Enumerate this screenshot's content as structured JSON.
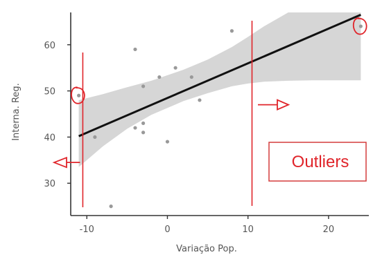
{
  "chart_data": {
    "type": "scatter",
    "xlabel": "Variação Pop.",
    "ylabel": "Interna. Reg.",
    "xlim": [
      -12,
      25
    ],
    "ylim": [
      23,
      67
    ],
    "x_ticks": [
      -10,
      0,
      10,
      20
    ],
    "y_ticks": [
      30,
      40,
      50,
      60
    ],
    "grid": false,
    "points": [
      {
        "x": -11,
        "y": 49
      },
      {
        "x": -9,
        "y": 40
      },
      {
        "x": -7,
        "y": 25
      },
      {
        "x": -4,
        "y": 59
      },
      {
        "x": -4,
        "y": 42
      },
      {
        "x": -3,
        "y": 51
      },
      {
        "x": -3,
        "y": 43
      },
      {
        "x": -3,
        "y": 41
      },
      {
        "x": -1,
        "y": 53
      },
      {
        "x": 0,
        "y": 39
      },
      {
        "x": 1,
        "y": 55
      },
      {
        "x": 3,
        "y": 53
      },
      {
        "x": 4,
        "y": 48
      },
      {
        "x": 8,
        "y": 63
      },
      {
        "x": 24,
        "y": 64
      }
    ],
    "regression": {
      "x0": -11,
      "y0": 40.2,
      "x1": 24,
      "y1": 66.5
    },
    "confidence_band": {
      "x": [
        -11,
        -8,
        -5,
        -2,
        0,
        2,
        5,
        8,
        10,
        12,
        15,
        18,
        21,
        24
      ],
      "lower": [
        33.5,
        38,
        41.8,
        44.8,
        46.3,
        47.8,
        49.5,
        51.0,
        51.6,
        52.0,
        52.2,
        52.3,
        52.3,
        52.3
      ],
      "upper": [
        48,
        49.3,
        50.8,
        52.2,
        53.4,
        54.6,
        56.8,
        59.5,
        61.7,
        64.0,
        67.0,
        67.0,
        67.0,
        67.0
      ]
    },
    "annotations": {
      "outliers_label": "Outliers",
      "vertical_lines_x": [
        -10.5,
        10.5
      ],
      "circled_points": [
        {
          "x": -11,
          "y": 49
        },
        {
          "x": 24,
          "y": 64
        }
      ],
      "arrows": [
        {
          "direction": "left",
          "x": -10.5,
          "y": 34.5
        },
        {
          "direction": "right",
          "x": 12.5,
          "y": 47
        }
      ],
      "color": "#e0242a",
      "box_color": "#d43b3b"
    },
    "colors": {
      "points": "#999999",
      "regression": "#111111",
      "band": "#d6d6d6",
      "axis": "#333333"
    }
  }
}
